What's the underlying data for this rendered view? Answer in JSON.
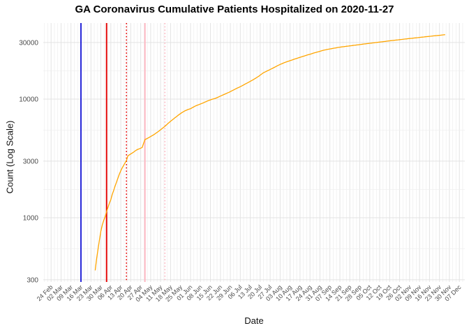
{
  "title": "GA Coronavirus Cumulative Patients Hospitalized on 2020-11-27",
  "chart_data": {
    "type": "line",
    "title": "GA Coronavirus Cumulative Patients Hospitalized on 2020-11-27",
    "xlabel": "Date",
    "ylabel": "Count (Log Scale)",
    "y_scale": "log10",
    "grid": true,
    "legend": "none",
    "background": "#ffffff",
    "ylim": [
      288,
      43000
    ],
    "y_ticks": {
      "labels": [
        "300",
        "1000",
        "3000",
        "10000",
        "30000"
      ],
      "values": [
        300,
        1000,
        3000,
        10000,
        30000
      ]
    },
    "y_minor_gridlines": [
      548,
      1732,
      5477,
      17321
    ],
    "x_axis": {
      "first_tick_date": "2020-02-24",
      "tick_spacing_days": 7,
      "tick_labels": [
        "24 Feb",
        "02 Mar",
        "09 Mar",
        "16 Mar",
        "23 Mar",
        "30 Mar",
        "06 Apr",
        "13 Apr",
        "20 Apr",
        "27 Apr",
        "04 May",
        "11 May",
        "18 May",
        "25 May",
        "01 Jun",
        "08 Jun",
        "15 Jun",
        "22 Jun",
        "29 Jun",
        "06 Jul",
        "13 Jul",
        "20 Jul",
        "27 Jul",
        "03 Aug",
        "10 Aug",
        "17 Aug",
        "24 Aug",
        "31 Aug",
        "07 Sep",
        "14 Sep",
        "21 Sep",
        "28 Sep",
        "05 Oct",
        "12 Oct",
        "19 Oct",
        "26 Oct",
        "02 Nov",
        "09 Nov",
        "16 Nov",
        "23 Nov",
        "30 Nov",
        "07 Dec"
      ]
    },
    "annotations": {
      "vlines": [
        {
          "date": "2020-03-16",
          "style": "solid",
          "color": "#1c1cd6"
        },
        {
          "date": "2020-04-03",
          "style": "solid",
          "color": "#e60000"
        },
        {
          "date": "2020-04-17",
          "style": "dotted",
          "color": "#e60000"
        },
        {
          "date": "2020-04-30",
          "style": "solid",
          "color": "#ffb6c1"
        },
        {
          "date": "2020-05-14",
          "style": "dotted",
          "color": "#ffb6c1"
        }
      ]
    },
    "series": [
      {
        "name": "cumulative-patients-hospitalized",
        "color": "#ffa500",
        "frequency": "daily",
        "start_date": "2020-03-26",
        "end_date": "2020-11-27",
        "values": [
          360,
          450,
          545,
          650,
          770,
          870,
          950,
          1020,
          1130,
          1220,
          1330,
          1420,
          1570,
          1700,
          1850,
          2000,
          2160,
          2330,
          2490,
          2630,
          2770,
          2900,
          3050,
          3330,
          3390,
          3450,
          3510,
          3570,
          3650,
          3720,
          3770,
          3810,
          3860,
          3910,
          4230,
          4560,
          4620,
          4690,
          4760,
          4840,
          4920,
          5000,
          5090,
          5190,
          5290,
          5400,
          5520,
          5650,
          5770,
          5900,
          6050,
          6200,
          6350,
          6500,
          6650,
          6800,
          6950,
          7100,
          7250,
          7400,
          7550,
          7700,
          7830,
          7950,
          8050,
          8150,
          8230,
          8300,
          8430,
          8560,
          8700,
          8800,
          8900,
          9000,
          9100,
          9200,
          9300,
          9420,
          9530,
          9650,
          9750,
          9850,
          9950,
          10030,
          10110,
          10200,
          10330,
          10460,
          10600,
          10730,
          10860,
          11000,
          11130,
          11260,
          11400,
          11560,
          11730,
          11900,
          12060,
          12230,
          12400,
          12560,
          12730,
          12900,
          13100,
          13300,
          13500,
          13700,
          13900,
          14100,
          14330,
          14560,
          14800,
          15060,
          15320,
          15600,
          15930,
          16260,
          16600,
          16830,
          17060,
          17300,
          17530,
          17760,
          18000,
          18260,
          18530,
          18800,
          19070,
          19330,
          19600,
          19830,
          20060,
          20300,
          20500,
          20700,
          20900,
          21100,
          21300,
          21500,
          21700,
          21900,
          22100,
          22300,
          22500,
          22700,
          22900,
          23100,
          23300,
          23500,
          23700,
          23900,
          24100,
          24300,
          24500,
          24700,
          24900,
          25100,
          25300,
          25500,
          25700,
          25870,
          26030,
          26200,
          26330,
          26470,
          26600,
          26730,
          26870,
          27000,
          27130,
          27270,
          27400,
          27500,
          27600,
          27700,
          27800,
          27900,
          28000,
          28100,
          28200,
          28300,
          28400,
          28500,
          28600,
          28700,
          28800,
          28900,
          29050,
          29150,
          29250,
          29350,
          29450,
          29550,
          29650,
          29750,
          29850,
          29950,
          30050,
          30150,
          30250,
          30350,
          30450,
          30550,
          30650,
          30780,
          30900,
          31000,
          31100,
          31200,
          31300,
          31400,
          31500,
          31600,
          31700,
          31800,
          31900,
          32000,
          32100,
          32200,
          32300,
          32400,
          32500,
          32600,
          32700,
          32800,
          32900,
          33000,
          33100,
          33200,
          33300,
          33400,
          33500,
          33600,
          33700,
          33800,
          33900,
          34000,
          34100,
          34200,
          34300,
          34400,
          34500,
          34600,
          34700,
          34800,
          34900
        ]
      }
    ]
  }
}
